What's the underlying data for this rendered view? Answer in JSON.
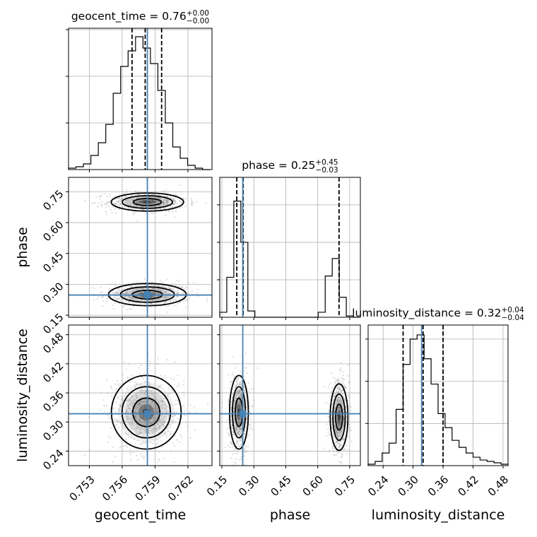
{
  "chart_data": {
    "type": "corner",
    "parameters": [
      "geocent_time",
      "phase",
      "luminosity_distance"
    ],
    "injection": {
      "geocent_time": 0.7583,
      "phase": 0.248,
      "luminosity_distance": 0.317
    },
    "diagonal": [
      {
        "name": "geocent_time",
        "title_text": "geocent_time = 0.76",
        "title_plus": "+0.00",
        "title_minus": "−0.00",
        "quantiles": [
          0.7569,
          0.7581,
          0.7596
        ],
        "xlim": [
          0.7511,
          0.7642
        ],
        "hist_edges": [
          0.7511,
          0.75178,
          0.75246,
          0.75314,
          0.75382,
          0.7545,
          0.75518,
          0.75586,
          0.75654,
          0.75722,
          0.7579,
          0.75858,
          0.75926,
          0.75994,
          0.76062,
          0.7613,
          0.76198,
          0.76266,
          0.76334,
          0.76402
        ],
        "hist_counts": [
          1,
          2,
          4,
          10,
          19,
          32,
          54,
          73,
          84,
          94,
          86,
          75,
          56,
          33,
          16,
          8,
          3,
          1,
          0
        ],
        "ylim_max": 100,
        "yticks": [
          33,
          66,
          99
        ],
        "xticks": [
          0.753,
          0.756,
          0.759,
          0.762
        ]
      },
      {
        "name": "phase",
        "title_text": "phase = 0.25",
        "title_plus": "+0.45",
        "title_minus": "−0.03",
        "quantiles": [
          0.22,
          0.25,
          0.7
        ],
        "xlim": [
          0.14,
          0.8
        ],
        "hist_edges": [
          0.14,
          0.173,
          0.206,
          0.239,
          0.272,
          0.305,
          0.338,
          0.371,
          0.404,
          0.437,
          0.47,
          0.503,
          0.536,
          0.569,
          0.602,
          0.635,
          0.668,
          0.701,
          0.734,
          0.767,
          0.8
        ],
        "hist_counts": [
          4,
          32,
          93,
          60,
          5,
          0,
          0,
          0,
          0,
          0,
          0,
          0,
          0,
          0,
          4,
          33,
          47,
          16,
          1,
          0
        ],
        "ylim_max": 112,
        "yticks": [
          30,
          60,
          90
        ],
        "xticks": [
          0.15,
          0.3,
          0.45,
          0.6,
          0.75
        ]
      },
      {
        "name": "luminosity_distance",
        "title_text": "luminosity_distance = 0.32",
        "title_plus": "+0.04",
        "title_minus": "−0.04",
        "quantiles": [
          0.28,
          0.32,
          0.36
        ],
        "xlim": [
          0.21,
          0.49
        ],
        "hist_edges": [
          0.21,
          0.224,
          0.238,
          0.252,
          0.266,
          0.28,
          0.294,
          0.308,
          0.322,
          0.336,
          0.35,
          0.364,
          0.378,
          0.392,
          0.406,
          0.42,
          0.434,
          0.448,
          0.462,
          0.476,
          0.49
        ],
        "hist_counts": [
          1,
          3,
          9,
          16,
          40,
          72,
          90,
          93,
          76,
          58,
          37,
          27,
          18,
          13,
          9,
          6,
          4,
          3,
          2,
          1
        ],
        "ylim_max": 100,
        "yticks": [
          30,
          60,
          90
        ],
        "xticks": [
          0.24,
          0.3,
          0.36,
          0.42,
          0.48
        ]
      }
    ],
    "pairs": [
      {
        "x": "geocent_time",
        "y": "phase",
        "xlim": [
          0.7511,
          0.7642
        ],
        "ylim": [
          0.14,
          0.82
        ],
        "modes": [
          {
            "cx": 0.7583,
            "cy": 0.25,
            "sx": 0.00145,
            "sy": 0.022
          },
          {
            "cx": 0.7583,
            "cy": 0.7,
            "sx": 0.00135,
            "sy": 0.018
          }
        ],
        "yticks": [
          0.15,
          0.3,
          0.45,
          0.6,
          0.75
        ]
      },
      {
        "x": "geocent_time",
        "y": "luminosity_distance",
        "xlim": [
          0.7511,
          0.7642
        ],
        "ylim": [
          0.21,
          0.5
        ],
        "modes": [
          {
            "cx": 0.7582,
            "cy": 0.32,
            "sx": 0.0013,
            "sy": 0.031
          }
        ],
        "yticks": [
          0.24,
          0.3,
          0.36,
          0.42,
          0.48
        ]
      },
      {
        "x": "phase",
        "y": "luminosity_distance",
        "xlim": [
          0.14,
          0.8
        ],
        "ylim": [
          0.21,
          0.5
        ],
        "modes": [
          {
            "cx": 0.23,
            "cy": 0.32,
            "sx": 0.018,
            "sy": 0.031
          },
          {
            "cx": 0.7,
            "cy": 0.31,
            "sx": 0.017,
            "sy": 0.028
          }
        ]
      }
    ],
    "tick_labels": {
      "geocent_time": [
        "0.753",
        "0.756",
        "0.759",
        "0.762"
      ],
      "phase": [
        "0.15",
        "0.30",
        "0.45",
        "0.60",
        "0.75"
      ],
      "luminosity_distance": [
        "0.24",
        "0.30",
        "0.36",
        "0.42",
        "0.48"
      ]
    },
    "axis_labels": {
      "x": [
        "geocent_time",
        "phase",
        "luminosity_distance"
      ],
      "y": [
        "phase",
        "luminosity_distance"
      ]
    },
    "grid": true,
    "colors": {
      "line": "#000000",
      "truth": "#4682b4",
      "points": "#9a9a9a",
      "grid": "#b0b0b0"
    }
  }
}
